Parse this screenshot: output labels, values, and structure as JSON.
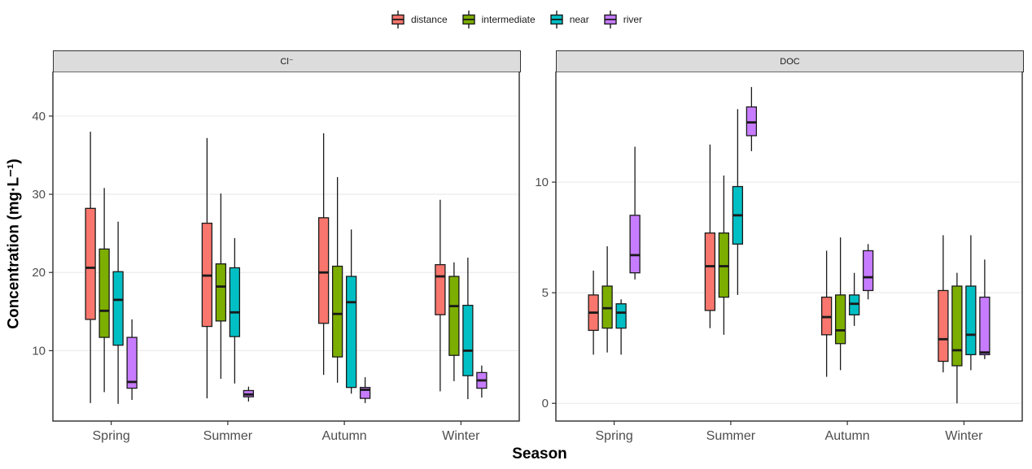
{
  "chart_data": {
    "type": "boxplot",
    "title": "",
    "xlabel": "Season",
    "ylabel": "Concentration (mg·L⁻¹)",
    "legend_position": "top",
    "grid": true,
    "categories": [
      "Spring",
      "Summer",
      "Autumn",
      "Winter"
    ],
    "series": [
      {
        "name": "distance",
        "color": "#F8766D"
      },
      {
        "name": "intermediate",
        "color": "#7CAE00"
      },
      {
        "name": "near",
        "color": "#00BFC4"
      },
      {
        "name": "river",
        "color": "#C77CFF"
      }
    ],
    "box_value_order": [
      "whisker_low",
      "q1",
      "median",
      "q3",
      "whisker_high"
    ],
    "facets": [
      {
        "label": "Cl⁻",
        "ylim": [
          1.0,
          45.7
        ],
        "yticks": [
          10,
          20,
          30,
          40
        ],
        "boxes": [
          [
            [
              3.3,
              14.0,
              20.6,
              28.2,
              38.0
            ],
            [
              4.7,
              11.7,
              15.1,
              23.0,
              30.8
            ],
            [
              3.2,
              10.7,
              16.5,
              20.1,
              26.5
            ],
            [
              3.7,
              5.2,
              6.0,
              11.7,
              14.0
            ]
          ],
          [
            [
              3.9,
              13.1,
              19.6,
              26.3,
              37.2
            ],
            [
              6.4,
              13.8,
              18.2,
              21.1,
              30.1
            ],
            [
              5.8,
              11.8,
              14.9,
              20.6,
              24.4
            ],
            [
              3.5,
              4.1,
              4.4,
              4.9,
              5.4
            ]
          ],
          [
            [
              6.9,
              13.5,
              20.0,
              27.0,
              37.8
            ],
            [
              5.9,
              9.2,
              14.7,
              20.8,
              32.2
            ],
            [
              4.5,
              5.3,
              16.2,
              19.5,
              25.5
            ],
            [
              3.3,
              3.9,
              5.0,
              5.3,
              6.6
            ]
          ],
          [
            [
              4.8,
              14.6,
              19.5,
              21.0,
              29.3
            ],
            [
              6.1,
              9.4,
              15.7,
              19.5,
              21.3
            ],
            [
              3.8,
              6.8,
              10.0,
              15.8,
              21.9
            ],
            [
              4.0,
              5.2,
              6.2,
              7.2,
              8.1
            ]
          ]
        ]
      },
      {
        "label": "DOC",
        "ylim": [
          -0.8,
          15.0
        ],
        "yticks": [
          0,
          5,
          10
        ],
        "boxes": [
          [
            [
              2.2,
              3.3,
              4.1,
              4.9,
              6.0
            ],
            [
              2.3,
              3.4,
              4.3,
              5.3,
              7.1
            ],
            [
              2.2,
              3.4,
              4.1,
              4.5,
              4.7
            ],
            [
              5.6,
              5.9,
              6.7,
              8.5,
              11.6
            ]
          ],
          [
            [
              3.4,
              4.2,
              6.2,
              7.7,
              11.7
            ],
            [
              3.1,
              4.8,
              6.2,
              7.7,
              10.3
            ],
            [
              4.9,
              7.2,
              8.5,
              9.8,
              13.3
            ],
            [
              11.4,
              12.1,
              12.7,
              13.4,
              14.3
            ]
          ],
          [
            [
              1.2,
              3.1,
              3.9,
              4.8,
              6.9
            ],
            [
              1.5,
              2.7,
              3.3,
              4.9,
              7.5
            ],
            [
              3.5,
              4.0,
              4.5,
              4.9,
              5.9
            ],
            [
              4.7,
              5.1,
              5.7,
              6.9,
              7.2
            ]
          ],
          [
            [
              1.4,
              1.9,
              2.9,
              5.1,
              7.6
            ],
            [
              0.0,
              1.7,
              2.4,
              5.3,
              5.9
            ],
            [
              1.5,
              2.2,
              3.1,
              5.3,
              7.6
            ],
            [
              2.0,
              2.2,
              2.3,
              4.8,
              6.5
            ]
          ]
        ]
      }
    ]
  }
}
